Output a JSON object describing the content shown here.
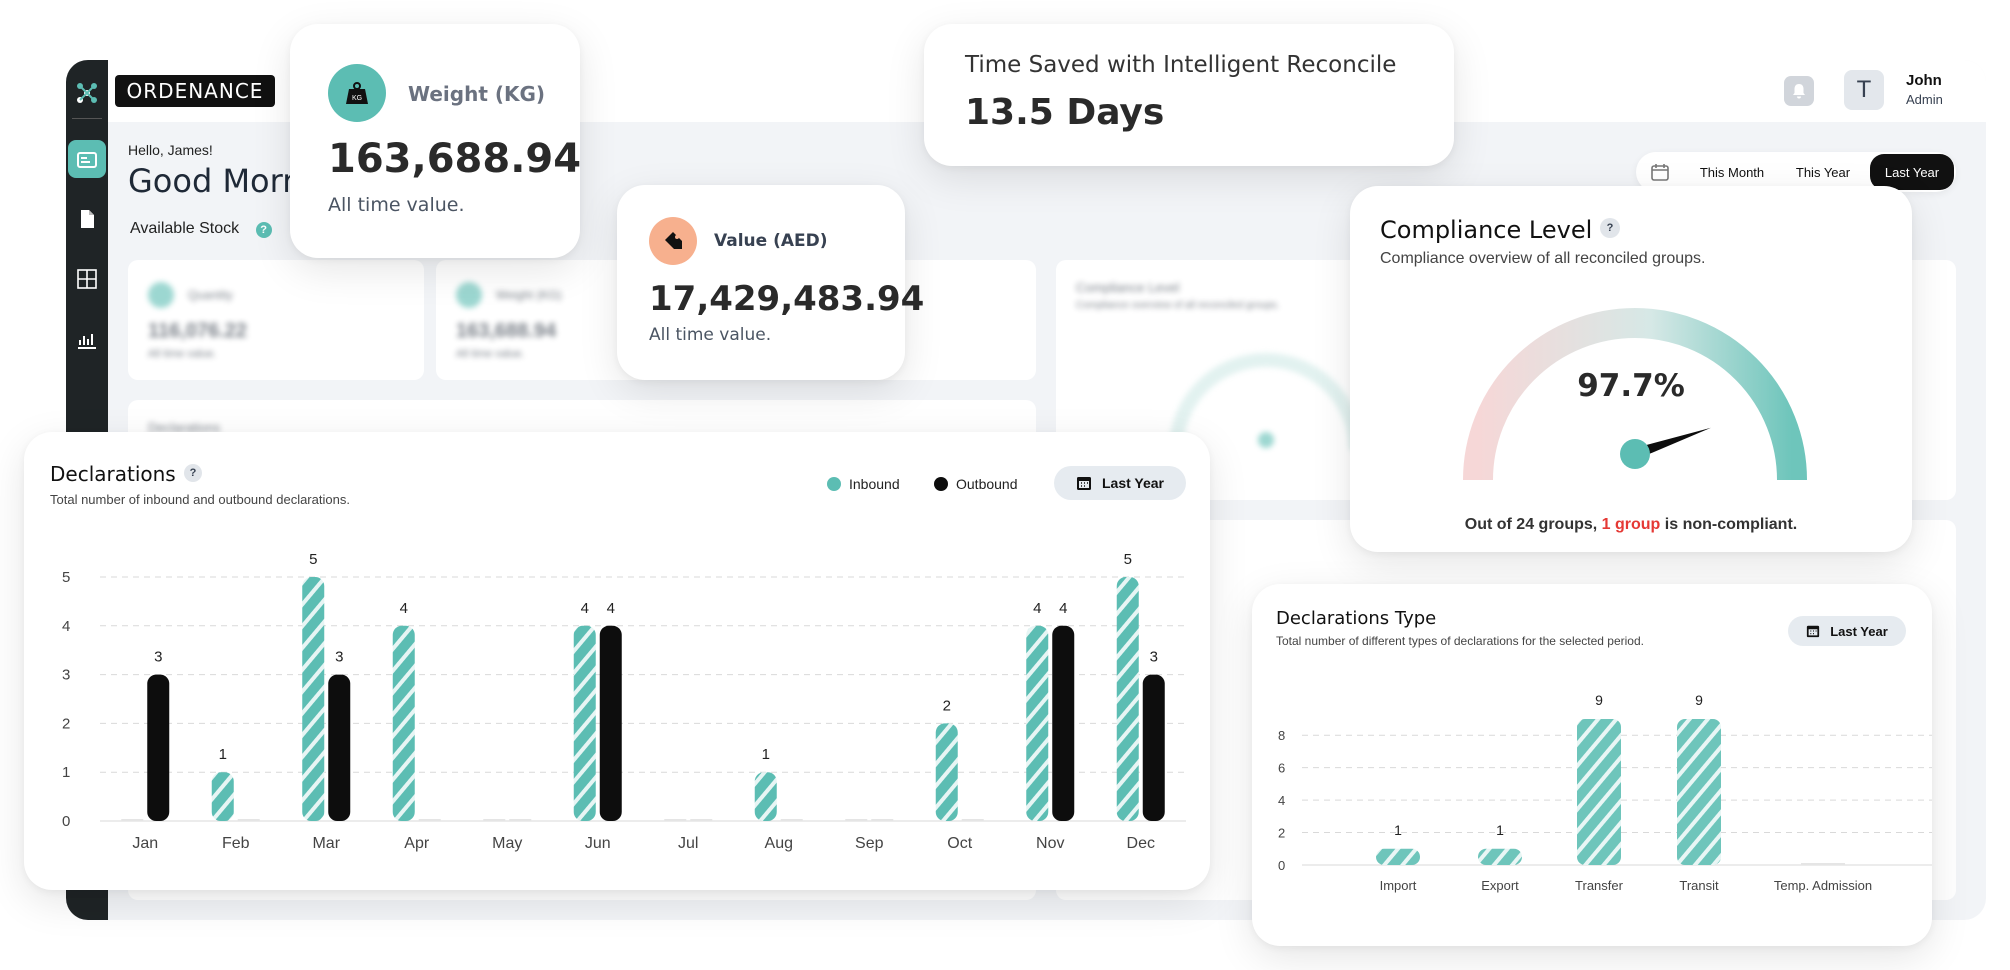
{
  "app": {
    "logo": "ORDENANCE",
    "user": {
      "name": "John",
      "role": "Admin",
      "initial": "T"
    },
    "hello": "Hello, James!",
    "greeting": "Good Morni",
    "available_stock": "Available Stock",
    "period_tabs": [
      "This Month",
      "This Year",
      "Last Year"
    ],
    "active_period": "Last Year",
    "blurred": {
      "quantity_label": "Quantity",
      "quantity_value": "116,076.22",
      "weight_label": "Weight (KG)",
      "weight_value": "163,688.94",
      "all_time": "All time value.",
      "declarations": "Declarations",
      "compliance": "Compliance Level",
      "compliance_sub": "Compliance overview of all reconciled groups."
    }
  },
  "weight_card": {
    "label": "Weight (KG)",
    "value": "163,688.94",
    "sub": "All time value.",
    "icon": "weight-icon"
  },
  "value_card": {
    "label": "Value (AED)",
    "value": "17,429,483.94",
    "sub": "All time value.",
    "icon": "price-tag-icon"
  },
  "time_card": {
    "label": "Time Saved with Intelligent Reconcile",
    "value": "13.5 Days"
  },
  "compliance_card": {
    "title": "Compliance Level",
    "help": "?",
    "subtitle": "Compliance overview of all reconciled groups.",
    "value_label": "97.7%",
    "value": 97.7,
    "footer_prefix": "Out of 24 groups, ",
    "footer_highlight": "1 group",
    "footer_suffix": " is non-compliant."
  },
  "declarations_card": {
    "title": "Declarations",
    "help": "?",
    "subtitle": "Total number of inbound and outbound declarations.",
    "legend_inbound": "Inbound",
    "legend_outbound": "Outbound",
    "filter": "Last Year"
  },
  "types_card": {
    "title": "Declarations Type",
    "subtitle": "Total number of different types of declarations for the selected period.",
    "filter": "Last Year"
  },
  "colors": {
    "teal": "#5cbdb3",
    "black": "#0d0d0d",
    "red": "#e53935",
    "orange": "#f7b08e"
  },
  "chart_data": [
    {
      "type": "bar",
      "categories": [
        "Jan",
        "Feb",
        "Mar",
        "Apr",
        "May",
        "Jun",
        "Jul",
        "Aug",
        "Sep",
        "Oct",
        "Nov",
        "Dec"
      ],
      "series": [
        {
          "name": "Inbound",
          "values": [
            0,
            1,
            5,
            4,
            0,
            4,
            0,
            1,
            0,
            2,
            4,
            5
          ]
        },
        {
          "name": "Outbound",
          "values": [
            3,
            0,
            3,
            0,
            0,
            4,
            0,
            0,
            0,
            0,
            4,
            3
          ]
        }
      ],
      "yticks": [
        0,
        1,
        2,
        3,
        4,
        5
      ],
      "ylim": [
        0,
        5
      ],
      "grid": true
    },
    {
      "type": "bar",
      "categories": [
        "Import",
        "Export",
        "Transfer",
        "Transit",
        "Temp. Admission"
      ],
      "values": [
        1,
        1,
        9,
        9,
        0
      ],
      "yticks": [
        0,
        2,
        4,
        6,
        8
      ],
      "ylim": [
        0,
        9
      ],
      "grid": true
    },
    {
      "type": "gauge",
      "value": 97.7,
      "range": [
        0,
        100
      ]
    }
  ]
}
